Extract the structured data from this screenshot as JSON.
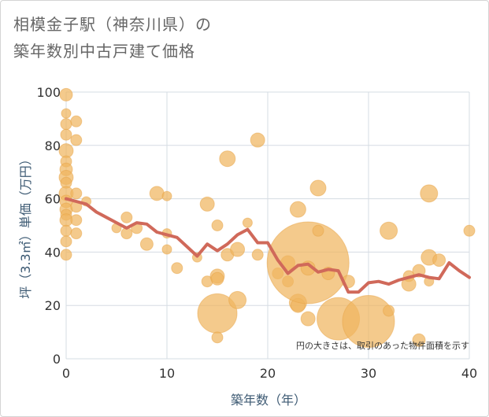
{
  "title": {
    "line1": "相模金子駅（神奈川県）の",
    "line2": "築年数別中古戸建て価格"
  },
  "colors": {
    "bubble": "#f0b560",
    "bubble_stroke": "#e8a445",
    "line": "#d0695a",
    "grid": "#d5dce3",
    "axis_label": "#3d5a73"
  },
  "chart_data": {
    "type": "scatter",
    "title": "相模金子駅（神奈川県）の築年数別中古戸建て価格",
    "xlabel": "築年数（年）",
    "ylabel": "坪（3.3㎡）単価（万円）",
    "xlim": [
      0,
      40
    ],
    "ylim": [
      0,
      100
    ],
    "xticks": [
      0,
      10,
      20,
      30,
      40
    ],
    "yticks": [
      0,
      20,
      40,
      60,
      80,
      100
    ],
    "grid": true,
    "annotation": "円の大きさは、取引のあった物件面積を示す",
    "bubbles": [
      {
        "x": 0,
        "y": 99,
        "r": 8
      },
      {
        "x": 0,
        "y": 92,
        "r": 6
      },
      {
        "x": 0,
        "y": 88,
        "r": 7
      },
      {
        "x": 0,
        "y": 84,
        "r": 7
      },
      {
        "x": 0,
        "y": 78,
        "r": 9
      },
      {
        "x": 0,
        "y": 74,
        "r": 7
      },
      {
        "x": 0,
        "y": 71,
        "r": 8
      },
      {
        "x": 0,
        "y": 68,
        "r": 9
      },
      {
        "x": 0,
        "y": 66,
        "r": 7
      },
      {
        "x": 0,
        "y": 62,
        "r": 9
      },
      {
        "x": 0,
        "y": 59,
        "r": 8
      },
      {
        "x": 0,
        "y": 56,
        "r": 8
      },
      {
        "x": 0,
        "y": 54,
        "r": 7
      },
      {
        "x": 0,
        "y": 52,
        "r": 8
      },
      {
        "x": 0,
        "y": 48,
        "r": 7
      },
      {
        "x": 0,
        "y": 44,
        "r": 7
      },
      {
        "x": 0,
        "y": 39,
        "r": 7
      },
      {
        "x": 1,
        "y": 89,
        "r": 7
      },
      {
        "x": 1,
        "y": 82,
        "r": 7
      },
      {
        "x": 1,
        "y": 62,
        "r": 7
      },
      {
        "x": 1,
        "y": 57,
        "r": 7
      },
      {
        "x": 1,
        "y": 52,
        "r": 7
      },
      {
        "x": 1,
        "y": 47,
        "r": 7
      },
      {
        "x": 2,
        "y": 59,
        "r": 6
      },
      {
        "x": 5,
        "y": 49,
        "r": 6
      },
      {
        "x": 6,
        "y": 53,
        "r": 7
      },
      {
        "x": 6,
        "y": 47,
        "r": 7
      },
      {
        "x": 7,
        "y": 49,
        "r": 7
      },
      {
        "x": 8,
        "y": 43,
        "r": 8
      },
      {
        "x": 9,
        "y": 62,
        "r": 9
      },
      {
        "x": 10,
        "y": 61,
        "r": 6
      },
      {
        "x": 10,
        "y": 47,
        "r": 6
      },
      {
        "x": 10,
        "y": 41,
        "r": 6
      },
      {
        "x": 11,
        "y": 34,
        "r": 7
      },
      {
        "x": 13,
        "y": 38,
        "r": 6
      },
      {
        "x": 14,
        "y": 58,
        "r": 9
      },
      {
        "x": 14,
        "y": 29,
        "r": 7
      },
      {
        "x": 15,
        "y": 50,
        "r": 7
      },
      {
        "x": 15,
        "y": 31,
        "r": 9
      },
      {
        "x": 15,
        "y": 30,
        "r": 8
      },
      {
        "x": 15,
        "y": 17,
        "r": 25
      },
      {
        "x": 15,
        "y": 8,
        "r": 7
      },
      {
        "x": 16,
        "y": 75,
        "r": 10
      },
      {
        "x": 16,
        "y": 39,
        "r": 8
      },
      {
        "x": 17,
        "y": 22,
        "r": 11
      },
      {
        "x": 17,
        "y": 41,
        "r": 9
      },
      {
        "x": 18,
        "y": 51,
        "r": 6
      },
      {
        "x": 19,
        "y": 82,
        "r": 9
      },
      {
        "x": 19,
        "y": 39,
        "r": 7
      },
      {
        "x": 21,
        "y": 32,
        "r": 7
      },
      {
        "x": 22,
        "y": 29,
        "r": 7
      },
      {
        "x": 22,
        "y": 36,
        "r": 9
      },
      {
        "x": 23,
        "y": 56,
        "r": 10
      },
      {
        "x": 23,
        "y": 21,
        "r": 11
      },
      {
        "x": 23,
        "y": 20,
        "r": 9
      },
      {
        "x": 24,
        "y": 36,
        "r": 52
      },
      {
        "x": 24,
        "y": 34,
        "r": 9
      },
      {
        "x": 24,
        "y": 15,
        "r": 9
      },
      {
        "x": 25,
        "y": 64,
        "r": 10
      },
      {
        "x": 25,
        "y": 48,
        "r": 7
      },
      {
        "x": 26,
        "y": 32,
        "r": 8
      },
      {
        "x": 27,
        "y": 15,
        "r": 27
      },
      {
        "x": 28,
        "y": 29,
        "r": 8
      },
      {
        "x": 30,
        "y": 14,
        "r": 33
      },
      {
        "x": 32,
        "y": 48,
        "r": 11
      },
      {
        "x": 32,
        "y": 18,
        "r": 7
      },
      {
        "x": 34,
        "y": 31,
        "r": 7
      },
      {
        "x": 34,
        "y": 28,
        "r": 9
      },
      {
        "x": 35,
        "y": 33,
        "r": 8
      },
      {
        "x": 35,
        "y": 7,
        "r": 8
      },
      {
        "x": 36,
        "y": 62,
        "r": 11
      },
      {
        "x": 36,
        "y": 38,
        "r": 10
      },
      {
        "x": 36,
        "y": 29,
        "r": 6
      },
      {
        "x": 37,
        "y": 37,
        "r": 8
      },
      {
        "x": 40,
        "y": 48,
        "r": 7
      }
    ],
    "series": [
      {
        "name": "average",
        "x": [
          0,
          1,
          2,
          3,
          4,
          5,
          6,
          7,
          8,
          9,
          10,
          11,
          12,
          13,
          14,
          15,
          16,
          17,
          18,
          19,
          20,
          21,
          22,
          23,
          24,
          25,
          26,
          27,
          28,
          29,
          30,
          31,
          32,
          33,
          34,
          35,
          36,
          37,
          38,
          39,
          40
        ],
        "y": [
          60,
          59,
          58,
          55,
          53,
          51,
          49,
          51,
          50.5,
          47.5,
          46.5,
          45.5,
          42,
          38.5,
          43,
          40.5,
          43,
          46.5,
          48.5,
          43.5,
          43.5,
          37,
          32,
          35,
          35.5,
          32.5,
          33.5,
          33,
          25,
          25,
          28.5,
          29,
          28,
          29.5,
          30.5,
          31.5,
          30.5,
          30,
          36,
          33,
          30.5
        ]
      }
    ]
  }
}
